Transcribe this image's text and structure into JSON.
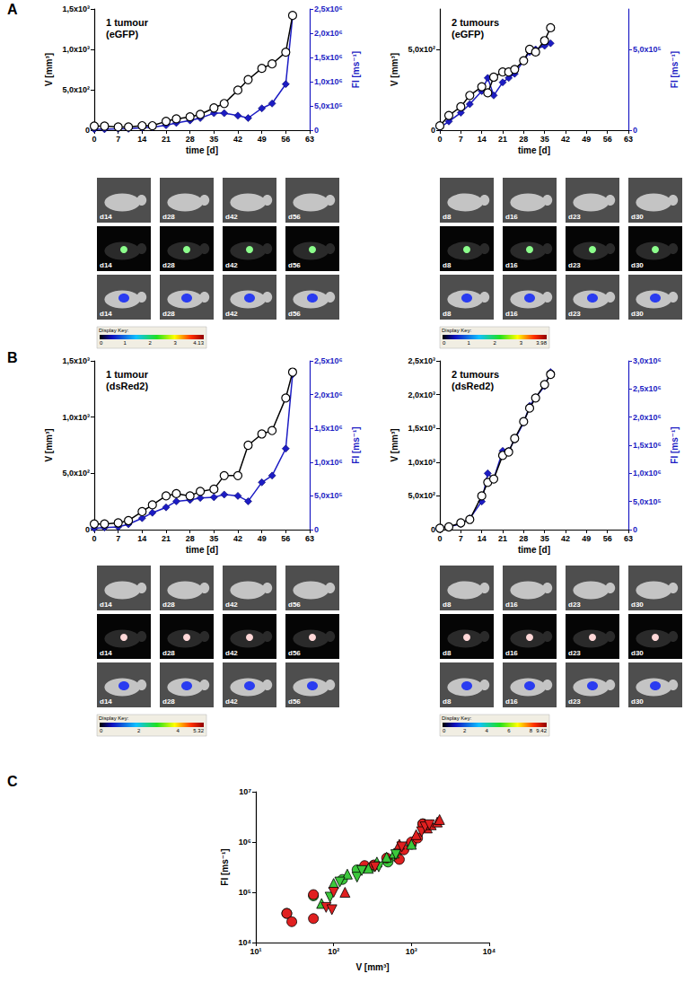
{
  "panel_labels": [
    "A",
    "B",
    "C"
  ],
  "chart_data": [
    {
      "type": "line",
      "title": "1 tumour\n(eGFP)",
      "xlabel": "time [d]",
      "ylabel": "V [mm³]",
      "y2label": "FI [ms⁻¹]",
      "xlim": [
        0,
        63
      ],
      "xticks": [
        0,
        7,
        14,
        21,
        28,
        35,
        42,
        49,
        56,
        63
      ],
      "ylim": [
        0,
        1500
      ],
      "yticks": [
        0,
        {
          "value": 500,
          "label": "5,0x10²"
        },
        {
          "value": 1000,
          "label": "1,0x10³"
        },
        {
          "value": 1500,
          "label": "1,5x10³"
        }
      ],
      "y2lim": [
        0,
        2500000
      ],
      "y2ticks": [
        0,
        {
          "value": 500000,
          "label": "5,0x10⁵"
        },
        {
          "value": 1000000,
          "label": "1,0x10⁶"
        },
        {
          "value": 1500000,
          "label": "1,5x10⁶"
        },
        {
          "value": 2000000,
          "label": "2,0x10⁶"
        },
        {
          "value": 2500000,
          "label": "2,5x10⁶"
        }
      ],
      "grid": false,
      "x": [
        0,
        3,
        7,
        10,
        14,
        17,
        21,
        24,
        28,
        31,
        35,
        38,
        42,
        45,
        49,
        52,
        56,
        58
      ],
      "series": [
        {
          "color": "#000000",
          "marker": "circle-open",
          "values": [
            50,
            50,
            40,
            40,
            55,
            55,
            110,
            140,
            165,
            195,
            275,
            330,
            495,
            625,
            765,
            820,
            965,
            1420
          ]
        },
        {
          "color": "#1c1cc4",
          "marker": "diamond",
          "axis": "y2",
          "values": [
            20000,
            20000,
            30000,
            30000,
            50000,
            60000,
            100000,
            150000,
            200000,
            250000,
            350000,
            350000,
            300000,
            250000,
            450000,
            550000,
            950000,
            2350000
          ]
        }
      ],
      "images": {
        "rows": [
          [
            "d14",
            "d28",
            "d42",
            "d56"
          ],
          [
            "d14",
            "d28",
            "d42",
            "d56"
          ],
          [
            "d14",
            "d28",
            "d42",
            "d56"
          ]
        ],
        "display_key": {
          "title": "Display Key:",
          "range": [
            0,
            4.13
          ],
          "ticks": [
            0,
            1,
            2,
            3,
            4.13
          ]
        }
      }
    },
    {
      "type": "line",
      "title": "2 tumours\n(eGFP)",
      "xlabel": "time [d]",
      "ylabel": "V [mm³]",
      "y2label": "FI [ms⁻¹]",
      "xlim": [
        0,
        63
      ],
      "xticks": [
        0,
        7,
        14,
        21,
        28,
        35,
        42,
        49,
        56,
        63
      ],
      "ylim": [
        0,
        750
      ],
      "yticks": [
        0,
        {
          "value": 500,
          "label": "5,0x10²"
        }
      ],
      "y2lim": [
        0,
        750000
      ],
      "y2ticks": [
        0,
        {
          "value": 500000,
          "label": "5,0x10⁵"
        }
      ],
      "grid": false,
      "x": [
        0,
        3,
        7,
        10,
        14,
        16,
        18,
        21,
        23,
        25,
        28,
        30,
        32,
        35,
        37
      ],
      "series": [
        {
          "color": "#000000",
          "marker": "circle-open",
          "values": [
            27,
            91,
            145,
            215,
            269,
            231,
            328,
            360,
            360,
            376,
            430,
            500,
            484,
            554,
            634
          ]
        },
        {
          "color": "#1c1cc4",
          "marker": "diamond",
          "axis": "y2",
          "values": [
            16000,
            54000,
            108000,
            161000,
            242000,
            323000,
            215000,
            296000,
            323000,
            349000,
            430000,
            484000,
            500000,
            522000,
            538000
          ]
        }
      ],
      "images": {
        "rows": [
          [
            "d8",
            "d16",
            "d23",
            "d30"
          ],
          [
            "d8",
            "d16",
            "d23",
            "d30"
          ],
          [
            "d8",
            "d16",
            "d23",
            "d30"
          ]
        ],
        "display_key": {
          "title": "Display Key:",
          "range": [
            0,
            3.98
          ],
          "ticks": [
            0,
            1,
            2,
            3,
            3.98
          ]
        }
      }
    },
    {
      "type": "line",
      "title": "1 tumour\n(dsRed2)",
      "xlabel": "time [d]",
      "ylabel": "V [mm³]",
      "y2label": "FI [ms⁻¹]",
      "xlim": [
        0,
        63
      ],
      "xticks": [
        0,
        7,
        14,
        21,
        28,
        35,
        42,
        49,
        56,
        63
      ],
      "ylim": [
        0,
        1500
      ],
      "yticks": [
        0,
        {
          "value": 500,
          "label": "5,0x10²"
        },
        {
          "value": 1000,
          "label": "1,0x10³"
        },
        {
          "value": 1500,
          "label": "1,5x10³"
        }
      ],
      "y2lim": [
        0,
        2500000
      ],
      "y2ticks": [
        0,
        {
          "value": 500000,
          "label": "5,0x10⁵"
        },
        {
          "value": 1000000,
          "label": "1,0x10⁶"
        },
        {
          "value": 1500000,
          "label": "1,5x10⁶"
        },
        {
          "value": 2000000,
          "label": "2,0x10⁶"
        },
        {
          "value": 2500000,
          "label": "2,5x10⁶"
        }
      ],
      "grid": false,
      "x": [
        0,
        3,
        7,
        10,
        14,
        17,
        21,
        24,
        28,
        31,
        35,
        38,
        42,
        45,
        49,
        52,
        56,
        58
      ],
      "series": [
        {
          "color": "#000000",
          "marker": "circle-open",
          "values": [
            50,
            50,
            60,
            80,
            160,
            220,
            300,
            320,
            300,
            340,
            360,
            480,
            480,
            750,
            850,
            880,
            1170,
            1400
          ]
        },
        {
          "color": "#1c1cc4",
          "marker": "diamond",
          "axis": "y2",
          "values": [
            20000,
            30000,
            40000,
            80000,
            170000,
            250000,
            330000,
            420000,
            440000,
            470000,
            480000,
            520000,
            500000,
            420000,
            700000,
            800000,
            1200000,
            2300000
          ]
        }
      ],
      "images": {
        "rows": [
          [
            "d14",
            "d28",
            "d42",
            "d56"
          ],
          [
            "d14",
            "d28",
            "d42",
            "d56"
          ],
          [
            "d14",
            "d28",
            "d42",
            "d56"
          ]
        ],
        "display_key": {
          "title": "Display Key:",
          "range": [
            0,
            5.32
          ],
          "ticks": [
            0,
            2,
            4,
            5.32
          ]
        }
      }
    },
    {
      "type": "line",
      "title": "2 tumours\n(dsRed2)",
      "xlabel": "time [d]",
      "ylabel": "V [mm³]",
      "y2label": "FI [ms⁻¹]",
      "xlim": [
        0,
        63
      ],
      "xticks": [
        0,
        7,
        14,
        21,
        28,
        35,
        42,
        49,
        56,
        63
      ],
      "ylim": [
        0,
        2500
      ],
      "yticks": [
        0,
        {
          "value": 500,
          "label": "5,0x10²"
        },
        {
          "value": 1000,
          "label": "1,0x10³"
        },
        {
          "value": 1500,
          "label": "1,5x10³"
        },
        {
          "value": 2000,
          "label": "2,0x10³"
        },
        {
          "value": 2500,
          "label": "2,5x10³"
        }
      ],
      "y2lim": [
        0,
        3000000
      ],
      "y2ticks": [
        0,
        {
          "value": 500000,
          "label": "5,0x10⁵"
        },
        {
          "value": 1000000,
          "label": "1,0x10⁶"
        },
        {
          "value": 1500000,
          "label": "1,5x10⁶"
        },
        {
          "value": 2000000,
          "label": "2,0x10⁶"
        },
        {
          "value": 2500000,
          "label": "2,5x10⁶"
        },
        {
          "value": 3000000,
          "label": "3,0x10⁶"
        }
      ],
      "grid": false,
      "x": [
        0,
        3,
        7,
        10,
        14,
        16,
        18,
        21,
        23,
        25,
        28,
        30,
        32,
        35,
        37
      ],
      "series": [
        {
          "color": "#000000",
          "marker": "circle-open",
          "values": [
            20,
            40,
            100,
            150,
            500,
            700,
            750,
            1100,
            1150,
            1350,
            1600,
            1800,
            1950,
            2150,
            2300
          ]
        },
        {
          "color": "#1c1cc4",
          "marker": "diamond",
          "axis": "y2",
          "values": [
            30000,
            50000,
            100000,
            200000,
            500000,
            1000000,
            900000,
            1400000,
            1400000,
            1600000,
            1900000,
            2200000,
            2350000,
            2550000,
            2800000
          ]
        }
      ],
      "images": {
        "rows": [
          [
            "d8",
            "d16",
            "d23",
            "d30"
          ],
          [
            "d8",
            "d16",
            "d23",
            "d30"
          ],
          [
            "d8",
            "d16",
            "d23",
            "d30"
          ]
        ],
        "display_key": {
          "title": "Display Key:",
          "range": [
            0,
            9.42
          ],
          "ticks": [
            0,
            2,
            4,
            6,
            8,
            9.42
          ]
        }
      }
    },
    {
      "type": "scatter",
      "xlabel": "V [mm³]",
      "ylabel": "FI [ms⁻¹]",
      "log": true,
      "grid": false,
      "xlim": [
        10,
        10000
      ],
      "xticks": [
        {
          "value": 10,
          "label": "10¹"
        },
        {
          "value": 100,
          "label": "10²"
        },
        {
          "value": 1000,
          "label": "10³"
        },
        {
          "value": 10000,
          "label": "10⁴"
        }
      ],
      "ylim": [
        10000,
        10000000
      ],
      "yticks": [
        {
          "value": 10000,
          "label": "10⁴"
        },
        {
          "value": 100000,
          "label": "10⁵"
        },
        {
          "value": 1000000,
          "label": "10⁶"
        },
        {
          "value": 10000000,
          "label": "10⁷"
        }
      ],
      "series": [
        {
          "color": "#3cc83c",
          "marker": "circle",
          "x": [
            25,
            55,
            130,
            200,
            320,
            500,
            650,
            1000,
            1400
          ],
          "values": [
            38000,
            85000,
            180000,
            280000,
            330000,
            400000,
            500000,
            900000,
            2300000
          ]
        },
        {
          "color": "#e02020",
          "marker": "circle",
          "x": [
            25,
            29,
            55,
            55,
            250,
            330,
            480,
            700,
            800,
            1000,
            1200,
            1400
          ],
          "values": [
            38000,
            26000,
            30000,
            90000,
            340000,
            350000,
            480000,
            450000,
            700000,
            1000000,
            1200000,
            2300000
          ]
        },
        {
          "color": "#3cc83c",
          "marker": "triangle",
          "x": [
            70,
            100,
            150,
            280,
            360,
            480,
            600,
            1000
          ],
          "values": [
            60000,
            150000,
            230000,
            300000,
            400000,
            500000,
            600000,
            900000
          ]
        },
        {
          "color": "#e02020",
          "marker": "triangle",
          "x": [
            140,
            700,
            1150,
            1600,
            1800,
            2150,
            2300
          ],
          "values": [
            100000,
            900000,
            1400000,
            1900000,
            2200000,
            2500000,
            2800000
          ]
        },
        {
          "color": "#3cc83c",
          "marker": "triangle-down",
          "x": [
            90,
            120,
            200,
            230,
            380,
            630
          ],
          "values": [
            80000,
            160000,
            200000,
            270000,
            320000,
            560000
          ]
        },
        {
          "color": "#e02020",
          "marker": "triangle-down",
          "x": [
            80,
            95,
            100,
            340,
            750,
            1350,
            1500,
            1700
          ],
          "values": [
            50000,
            45000,
            100000,
            320000,
            800000,
            1600000,
            2000000,
            2200000
          ]
        }
      ]
    }
  ]
}
